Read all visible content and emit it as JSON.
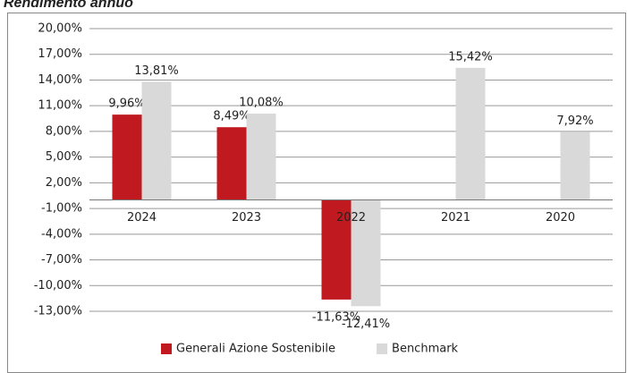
{
  "chart_data": {
    "type": "bar",
    "title": "Rendimento annuo",
    "categories": [
      "2024",
      "2023",
      "2022",
      "2021",
      "2020"
    ],
    "series": [
      {
        "name": "Generali Azione Sostenibile",
        "color": "#c0191f",
        "values": [
          9.96,
          8.49,
          -11.63,
          null,
          null
        ],
        "value_labels": [
          "9,96%",
          "8,49%",
          "-11,63%",
          null,
          null
        ]
      },
      {
        "name": "Benchmark",
        "color": "#d9d9d9",
        "values": [
          13.81,
          10.08,
          -12.41,
          15.42,
          7.92
        ],
        "value_labels": [
          "13,81%",
          "10,08%",
          "-12,41%",
          "15,42%",
          "7,92%"
        ]
      }
    ],
    "ylim": [
      -13,
      20
    ],
    "yticks": [
      {
        "value": 20,
        "label": "20,00%"
      },
      {
        "value": 17,
        "label": "17,00%"
      },
      {
        "value": 14,
        "label": "14,00%"
      },
      {
        "value": 11,
        "label": "11,00%"
      },
      {
        "value": 8,
        "label": "8,00%"
      },
      {
        "value": 5,
        "label": "5,00%"
      },
      {
        "value": 2,
        "label": "2,00%"
      },
      {
        "value": -1,
        "label": "-1,00%"
      },
      {
        "value": -4,
        "label": "-4,00%"
      },
      {
        "value": -7,
        "label": "-7,00%"
      },
      {
        "value": -10,
        "label": "-10,00%"
      },
      {
        "value": -13,
        "label": "-13,00%"
      }
    ],
    "grid": true,
    "legend": "bottom"
  }
}
